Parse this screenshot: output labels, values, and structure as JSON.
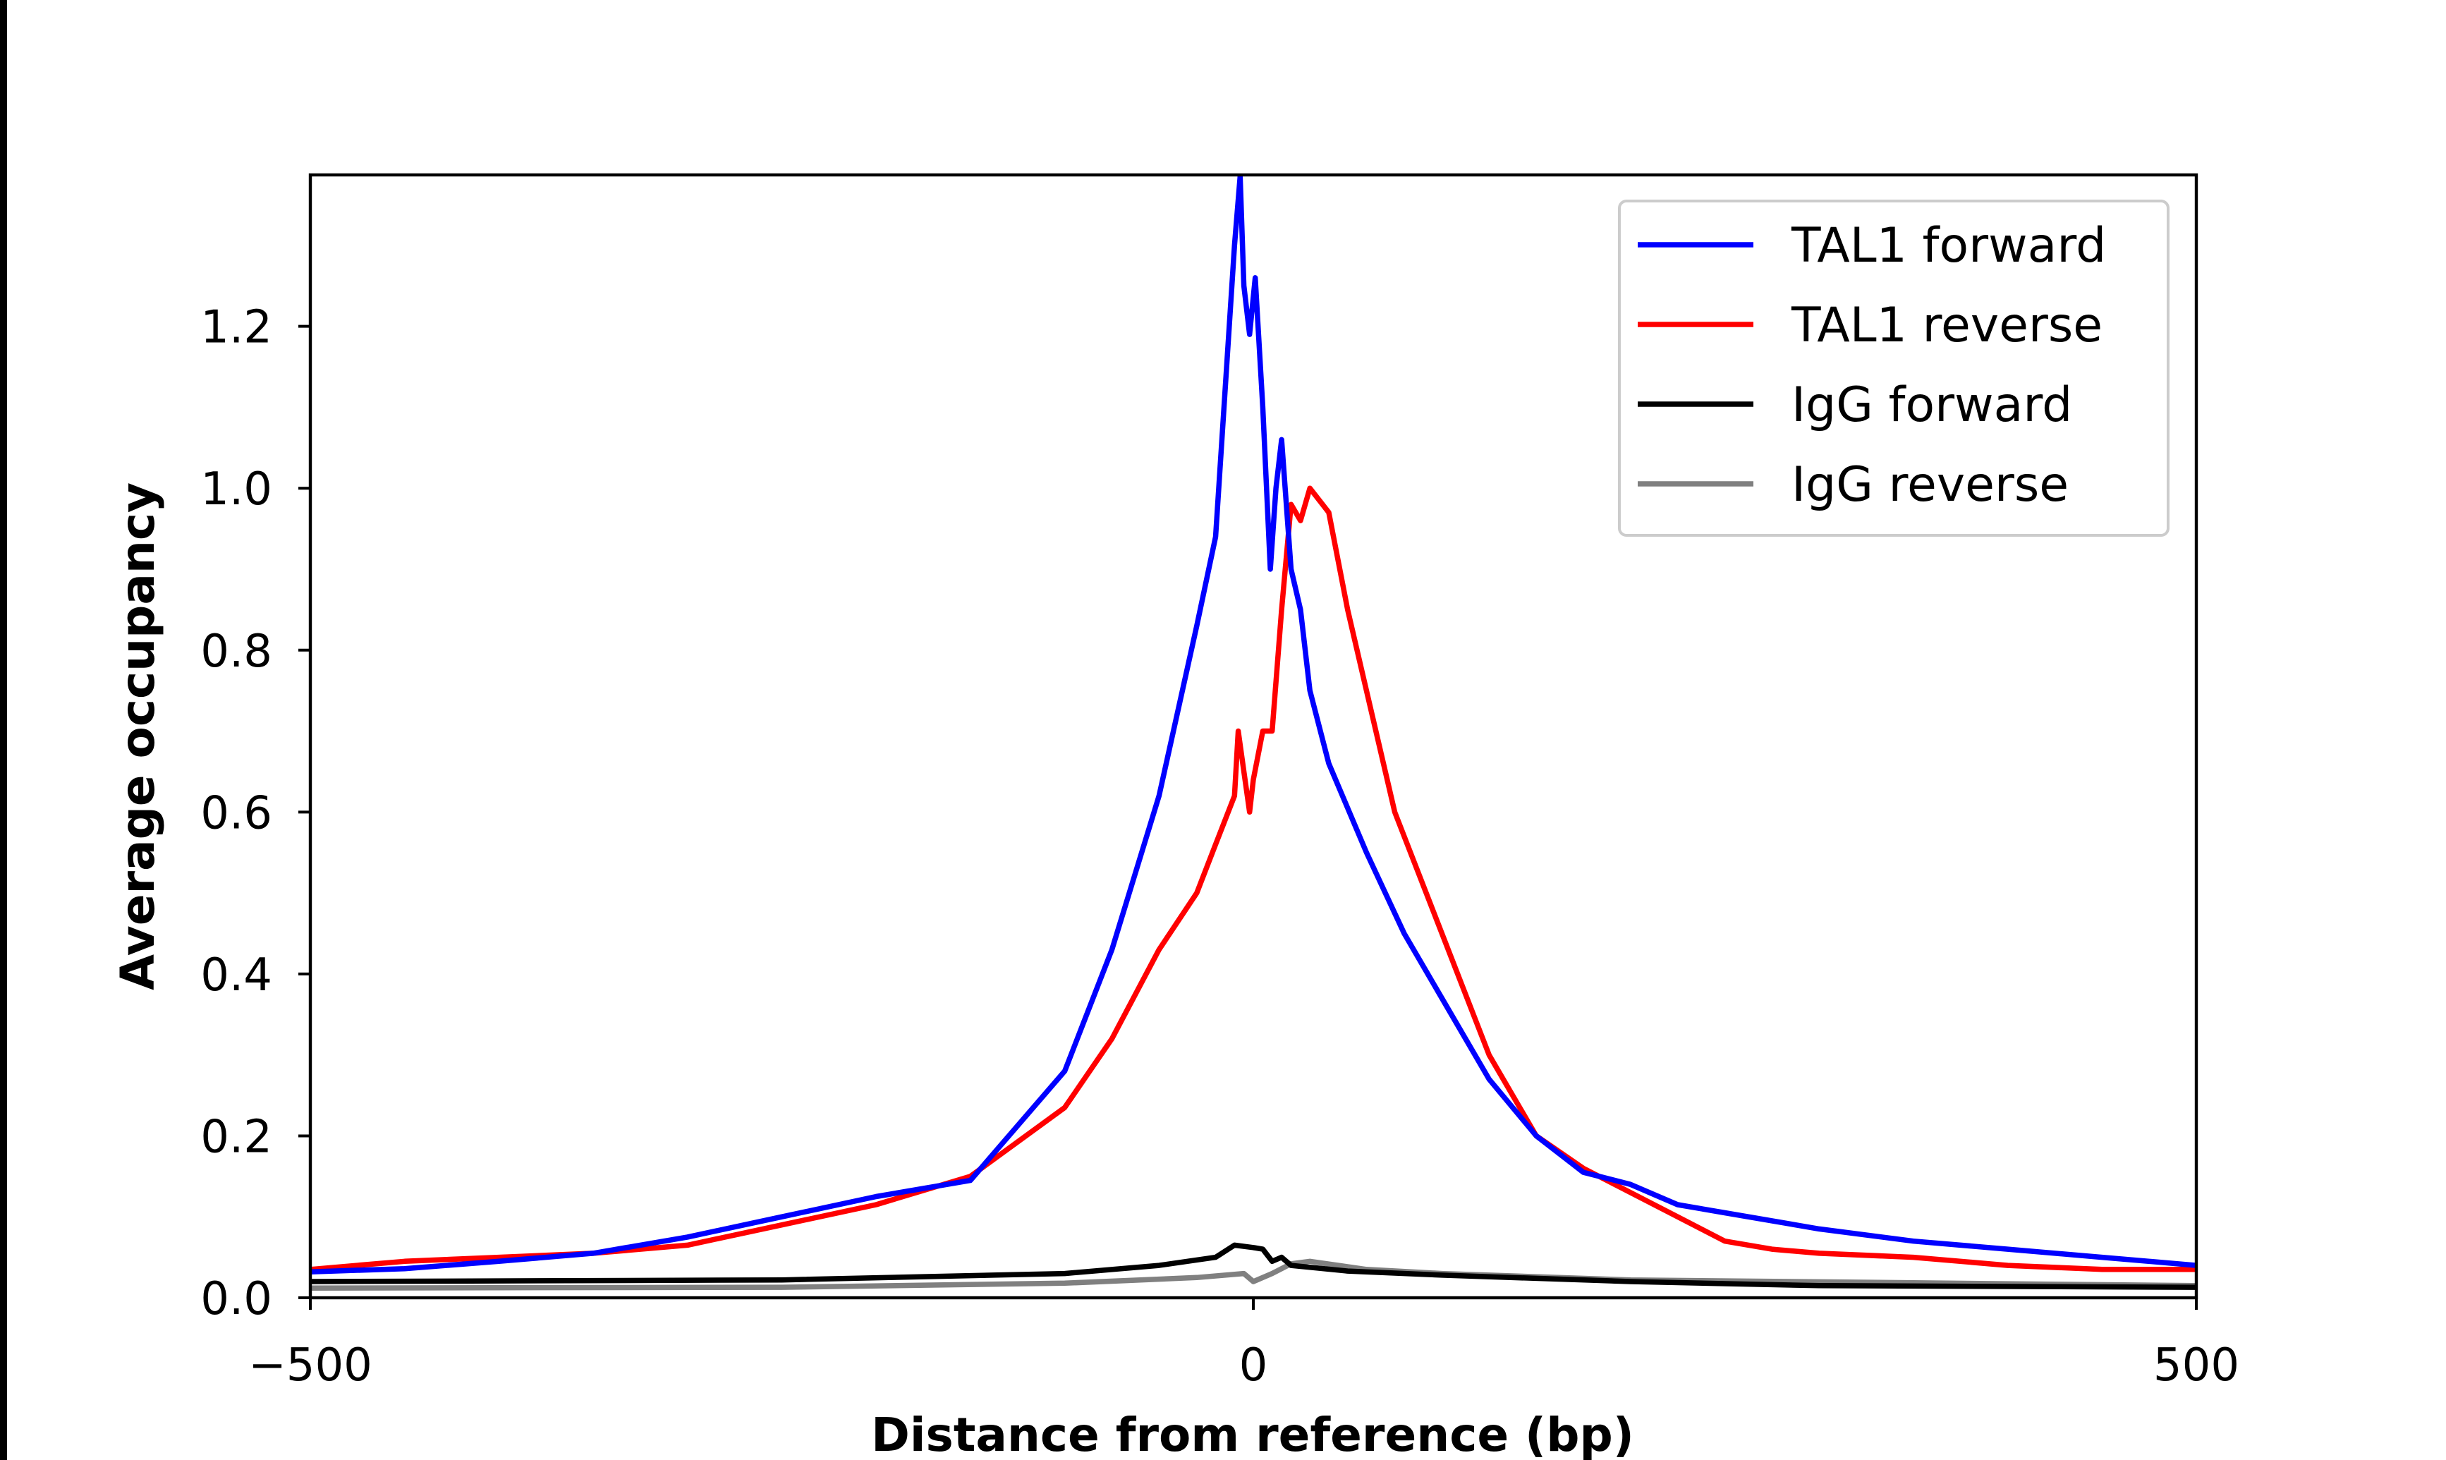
{
  "chart_data": {
    "type": "line",
    "title": "",
    "xlabel": "Distance from reference (bp)",
    "ylabel": "Average occupancy",
    "xlim": [
      -500,
      500
    ],
    "ylim": [
      0,
      1.387
    ],
    "xticks": [
      -500,
      0,
      500
    ],
    "xtick_labels": [
      "−500",
      "0",
      "500"
    ],
    "yticks": [
      0.0,
      0.2,
      0.4,
      0.6,
      0.8,
      1.0,
      1.2
    ],
    "ytick_labels": [
      "0.0",
      "0.2",
      "0.4",
      "0.6",
      "0.8",
      "1.0",
      "1.2"
    ],
    "grid": false,
    "legend_position": "top-right",
    "series": [
      {
        "name": "TAL1 forward",
        "color": "#0000ff",
        "x": [
          -500,
          -450,
          -400,
          -350,
          -300,
          -250,
          -200,
          -150,
          -100,
          -75,
          -50,
          -30,
          -20,
          -10,
          -7,
          -5,
          -2,
          1,
          5,
          9,
          12,
          15,
          20,
          25,
          30,
          40,
          60,
          80,
          100,
          125,
          150,
          175,
          200,
          225,
          250,
          300,
          350,
          400,
          450,
          500
        ],
        "y": [
          0.032,
          0.036,
          0.045,
          0.055,
          0.075,
          0.1,
          0.125,
          0.145,
          0.28,
          0.43,
          0.62,
          0.83,
          0.94,
          1.3,
          1.385,
          1.25,
          1.19,
          1.26,
          1.1,
          0.9,
          1.0,
          1.06,
          0.9,
          0.85,
          0.75,
          0.66,
          0.55,
          0.45,
          0.37,
          0.27,
          0.2,
          0.155,
          0.14,
          0.115,
          0.105,
          0.085,
          0.07,
          0.06,
          0.05,
          0.04
        ]
      },
      {
        "name": "TAL1 reverse",
        "color": "#ff0000",
        "x": [
          -500,
          -450,
          -400,
          -350,
          -300,
          -250,
          -200,
          -150,
          -100,
          -75,
          -50,
          -30,
          -20,
          -10,
          -8,
          -5,
          -2,
          0,
          5,
          10,
          15,
          20,
          25,
          30,
          40,
          50,
          60,
          75,
          100,
          125,
          150,
          175,
          200,
          225,
          250,
          275,
          300,
          350,
          400,
          450,
          500
        ],
        "y": [
          0.035,
          0.045,
          0.05,
          0.055,
          0.065,
          0.09,
          0.115,
          0.15,
          0.235,
          0.32,
          0.43,
          0.5,
          0.56,
          0.62,
          0.7,
          0.65,
          0.6,
          0.64,
          0.7,
          0.7,
          0.85,
          0.98,
          0.96,
          1.0,
          0.97,
          0.85,
          0.75,
          0.6,
          0.45,
          0.3,
          0.2,
          0.16,
          0.13,
          0.1,
          0.07,
          0.06,
          0.055,
          0.05,
          0.04,
          0.035,
          0.035
        ]
      },
      {
        "name": "IgG forward",
        "color": "#000000",
        "x": [
          -500,
          -250,
          -100,
          -50,
          -20,
          -10,
          0,
          5,
          10,
          15,
          20,
          50,
          100,
          200,
          300,
          500
        ],
        "y": [
          0.02,
          0.022,
          0.03,
          0.04,
          0.05,
          0.065,
          0.062,
          0.06,
          0.045,
          0.05,
          0.04,
          0.033,
          0.028,
          0.02,
          0.015,
          0.013
        ]
      },
      {
        "name": "IgG reverse",
        "color": "#808080",
        "x": [
          -500,
          -250,
          -100,
          -30,
          -5,
          0,
          10,
          20,
          30,
          60,
          100,
          200,
          500
        ],
        "y": [
          0.012,
          0.013,
          0.018,
          0.025,
          0.03,
          0.02,
          0.03,
          0.042,
          0.045,
          0.035,
          0.03,
          0.022,
          0.015
        ]
      }
    ]
  }
}
